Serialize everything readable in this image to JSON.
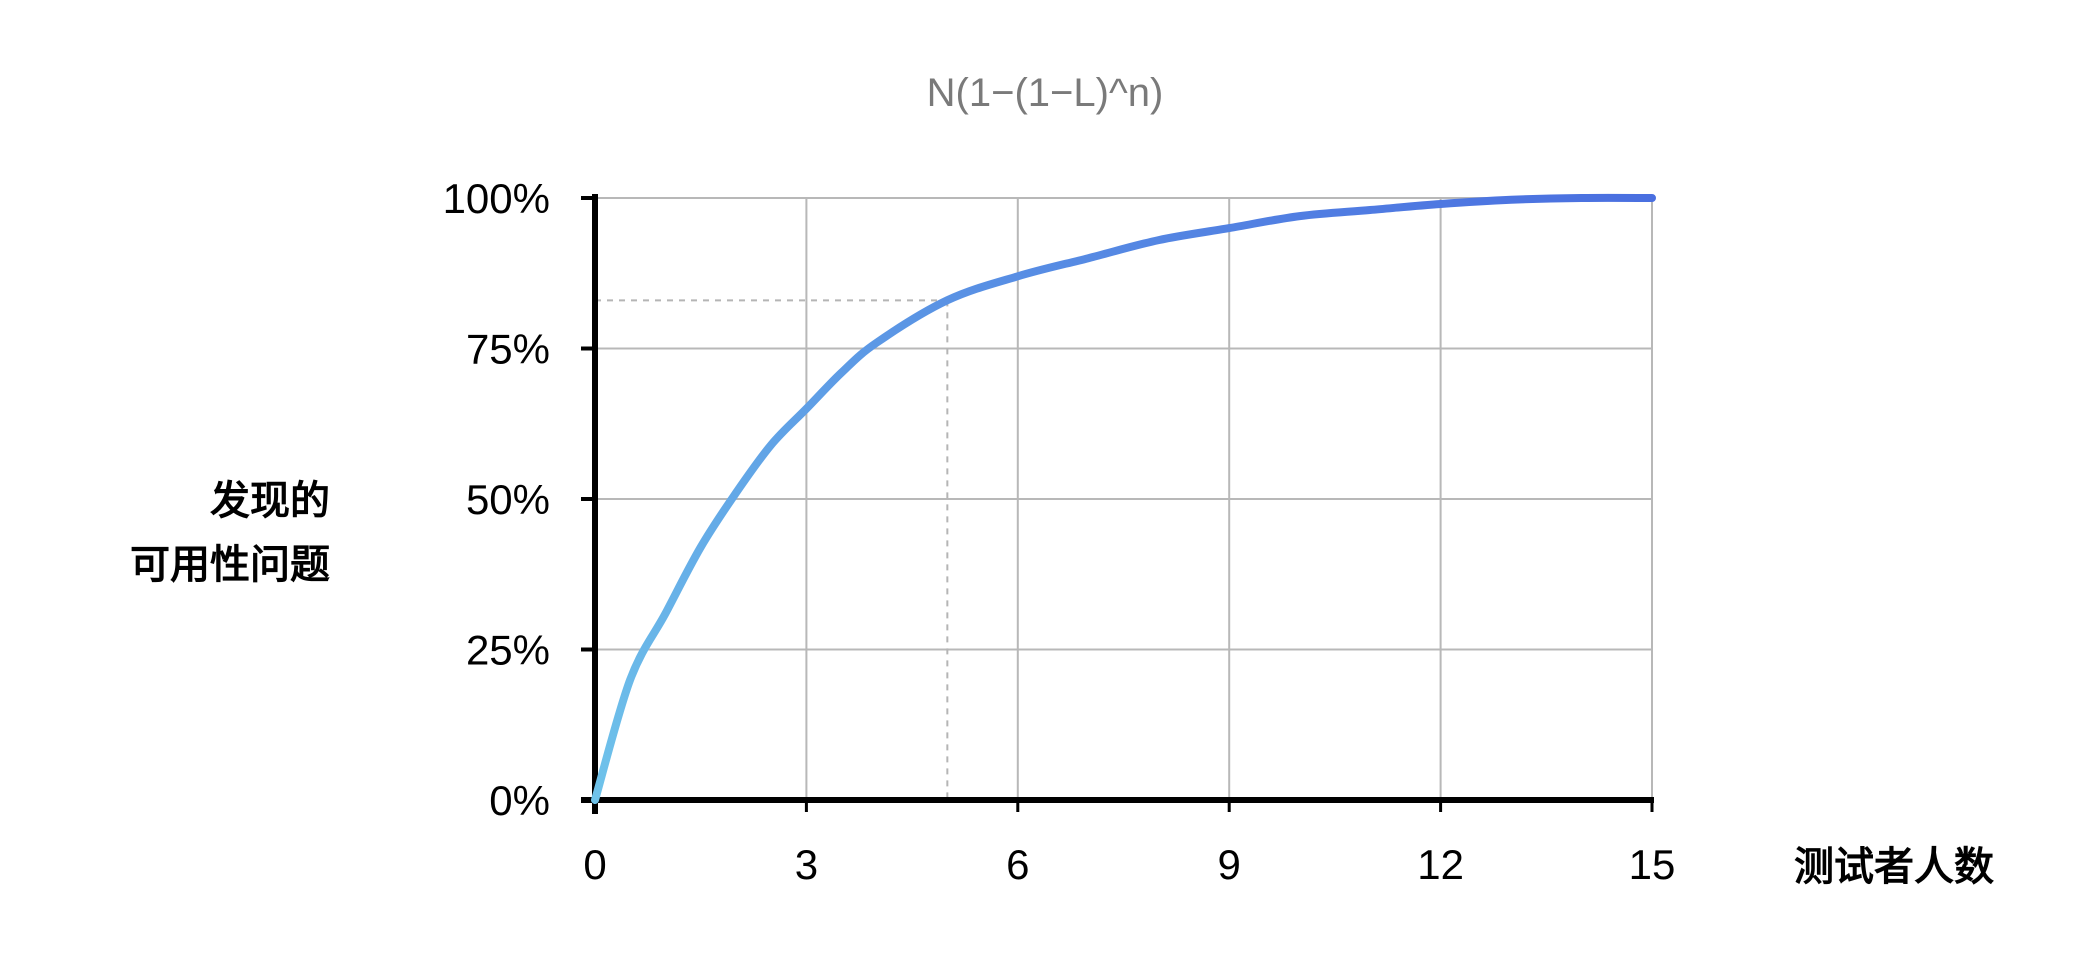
{
  "chart_data": {
    "type": "line",
    "title": "N(1−(1−L)^n)",
    "xlabel": "测试者人数",
    "ylabel_lines": [
      "发现的",
      "可用性问题"
    ],
    "x_ticks": [
      0,
      3,
      6,
      9,
      12,
      15
    ],
    "y_ticks": [
      0,
      25,
      50,
      75,
      100
    ],
    "y_tick_labels": [
      "0%",
      "25%",
      "50%",
      "75%",
      "100%"
    ],
    "xlim": [
      0,
      15
    ],
    "ylim": [
      0,
      100
    ],
    "grid": true,
    "series": [
      {
        "x": [
          0,
          0.5,
          1,
          1.5,
          2,
          2.5,
          3,
          3.5,
          4,
          5,
          6,
          7,
          8,
          9,
          10,
          11,
          12,
          13,
          14,
          15
        ],
        "values": [
          0,
          20,
          31,
          42,
          51,
          59,
          65,
          71,
          76,
          83,
          87,
          90,
          93,
          95,
          97,
          98,
          99,
          99.7,
          100,
          100
        ]
      }
    ],
    "reference": {
      "x": 5,
      "y": 83
    },
    "colors": {
      "line_start": "#6fc3ea",
      "line_end": "#4a6fe0",
      "grid": "#b8b8b8",
      "axis": "#000000",
      "reference": "#b5b5b5",
      "title": "#7a7a7a"
    }
  }
}
